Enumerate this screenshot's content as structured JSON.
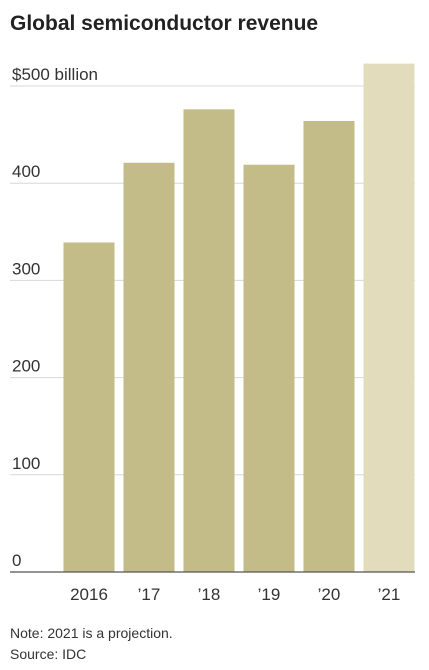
{
  "chart_data": {
    "type": "bar",
    "title": "Global semiconductor revenue",
    "categories": [
      "2016",
      "’17",
      "’18",
      "’19",
      "’20",
      "’21"
    ],
    "values": [
      339,
      421,
      476,
      419,
      464,
      523
    ],
    "colors": [
      "#c3bb88",
      "#c3bb88",
      "#c3bb88",
      "#c3bb88",
      "#c3bb88",
      "#e2dcbd"
    ],
    "ylim": [
      0,
      500
    ],
    "yticks": [
      0,
      100,
      200,
      300,
      400,
      {
        "value": 500,
        "label": "$500 billion"
      }
    ],
    "grid": true,
    "note": "Note: 2021 is a projection.",
    "source": "Source: IDC"
  }
}
